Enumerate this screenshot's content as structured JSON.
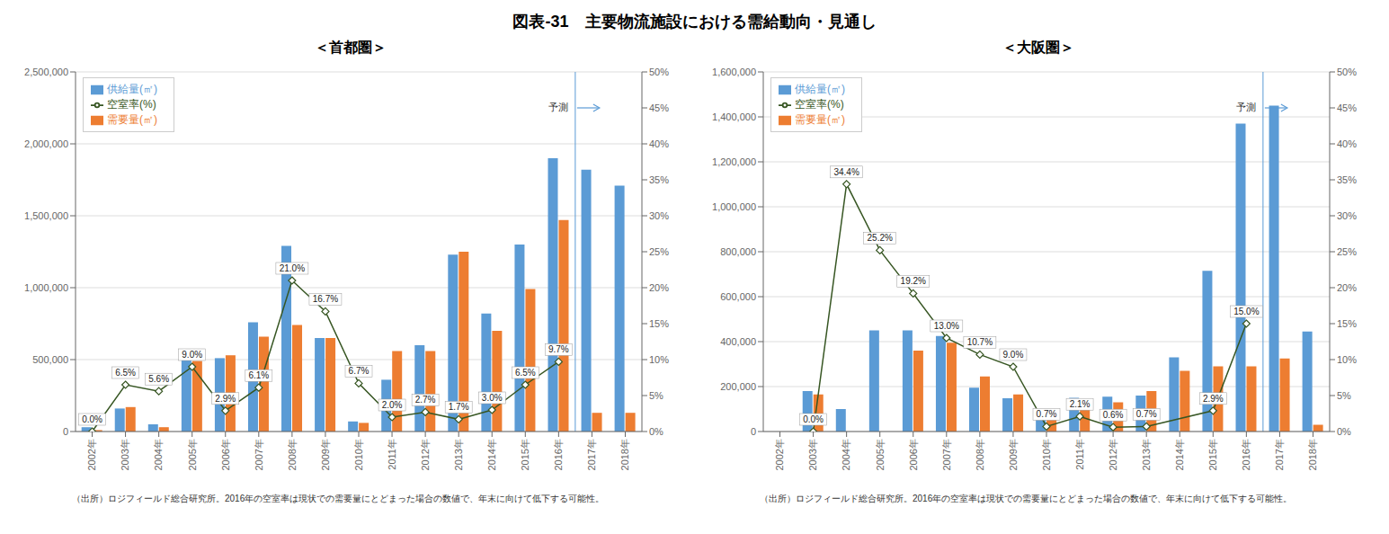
{
  "title": "図表-31　主要物流施設における需給動向・見通し",
  "chart_data": [
    {
      "type": "bar",
      "title": "＜首都圏＞",
      "categories": [
        "2002年",
        "2003年",
        "2004年",
        "2005年",
        "2006年",
        "2007年",
        "2008年",
        "2009年",
        "2010年",
        "2011年",
        "2012年",
        "2013年",
        "2014年",
        "2015年",
        "2016年",
        "2017年",
        "2018年"
      ],
      "series": [
        {
          "name": "供給量(㎡)",
          "type": "bar",
          "color": "#5B9BD5",
          "values": [
            30000,
            160000,
            50000,
            510000,
            510000,
            760000,
            1290000,
            650000,
            70000,
            360000,
            600000,
            1230000,
            820000,
            1300000,
            1900000,
            1820000,
            1710000
          ]
        },
        {
          "name": "需要量(㎡)",
          "type": "bar",
          "color": "#ED7D31",
          "values": [
            10000,
            170000,
            30000,
            490000,
            530000,
            660000,
            740000,
            650000,
            60000,
            560000,
            560000,
            1250000,
            700000,
            990000,
            1470000,
            130000,
            130000
          ]
        },
        {
          "name": "空室率(%)",
          "type": "line",
          "axis": "y2",
          "color": "#375623",
          "marker": "diamond",
          "data_labels": true,
          "values": [
            0.0,
            6.5,
            5.6,
            9.0,
            2.9,
            6.1,
            21.0,
            16.7,
            6.7,
            2.0,
            2.7,
            1.7,
            3.0,
            6.5,
            9.7,
            null,
            null
          ],
          "value_labels": [
            "0.0%",
            "6.5%",
            "5.6%",
            "9.0%",
            "2.9%",
            "6.1%",
            "21.0%",
            "16.7%",
            "6.7%",
            "2.0%",
            "2.7%",
            "1.7%",
            "3.0%",
            "6.5%",
            "9.7%",
            null,
            null
          ]
        }
      ],
      "ylim": [
        0,
        2500000
      ],
      "yticks": [
        0,
        {
          "value": 500000,
          "label": "500,000"
        },
        {
          "value": 1000000,
          "label": "1,000,000"
        },
        {
          "value": 1500000,
          "label": "1,500,000"
        },
        {
          "value": 2000000,
          "label": "2,000,000"
        },
        {
          "value": 2500000,
          "label": "2,500,000"
        }
      ],
      "y2lim": [
        0,
        50
      ],
      "y2ticks": [
        {
          "value": 0,
          "label": "0%"
        },
        {
          "value": 5,
          "label": "5%"
        },
        {
          "value": 10,
          "label": "10%"
        },
        {
          "value": 15,
          "label": "15%"
        },
        {
          "value": 20,
          "label": "20%"
        },
        {
          "value": 25,
          "label": "25%"
        },
        {
          "value": 30,
          "label": "30%"
        },
        {
          "value": 35,
          "label": "35%"
        },
        {
          "value": 40,
          "label": "40%"
        },
        {
          "value": 45,
          "label": "45%"
        },
        {
          "value": 50,
          "label": "50%"
        }
      ],
      "grid": true,
      "legend": "upper left",
      "annotations": [
        {
          "text": "予測",
          "x": "2017年",
          "color": "#5B9BD5"
        }
      ],
      "note": "（出所）ロジフィールド総合研究所。2016年の空室率は現状での需要量にとどまった場合の数値で、年末に向けて低下する可能性。"
    },
    {
      "type": "bar",
      "title": "＜大阪圏＞",
      "categories": [
        "2002年",
        "2003年",
        "2004年",
        "2005年",
        "2006年",
        "2007年",
        "2008年",
        "2009年",
        "2010年",
        "2011年",
        "2012年",
        "2013年",
        "2014年",
        "2015年",
        "2016年",
        "2017年",
        "2018年"
      ],
      "series": [
        {
          "name": "供給量(㎡)",
          "type": "bar",
          "color": "#5B9BD5",
          "values": [
            0,
            180000,
            100000,
            450000,
            450000,
            425000,
            195000,
            148000,
            65000,
            150000,
            155000,
            160000,
            330000,
            715000,
            1370000,
            1450000,
            445000
          ]
        },
        {
          "name": "需要量(㎡)",
          "type": "bar",
          "color": "#ED7D31",
          "values": [
            0,
            165000,
            0,
            0,
            360000,
            395000,
            245000,
            165000,
            80000,
            120000,
            130000,
            180000,
            270000,
            290000,
            290000,
            325000,
            30000
          ]
        },
        {
          "name": "空室率(%)",
          "type": "line",
          "axis": "y2",
          "color": "#375623",
          "marker": "diamond",
          "data_labels": true,
          "values": [
            null,
            0.0,
            34.4,
            25.2,
            19.2,
            13.0,
            10.7,
            9.0,
            0.7,
            2.1,
            0.6,
            0.7,
            null,
            2.9,
            15.0,
            null,
            null
          ],
          "value_labels": [
            null,
            "0.0%",
            "34.4%",
            "25.2%",
            "19.2%",
            "13.0%",
            "10.7%",
            "9.0%",
            "0.7%",
            "2.1%",
            "0.6%",
            "0.7%",
            null,
            "2.9%",
            "15.0%",
            null,
            null
          ]
        }
      ],
      "ylim": [
        0,
        1600000
      ],
      "yticks": [
        0,
        {
          "value": 200000,
          "label": "200,000"
        },
        {
          "value": 400000,
          "label": "400,000"
        },
        {
          "value": 600000,
          "label": "600,000"
        },
        {
          "value": 800000,
          "label": "800,000"
        },
        {
          "value": 1000000,
          "label": "1,000,000"
        },
        {
          "value": 1200000,
          "label": "1,200,000"
        },
        {
          "value": 1400000,
          "label": "1,400,000"
        },
        {
          "value": 1600000,
          "label": "1,600,000"
        }
      ],
      "y2lim": [
        0,
        50
      ],
      "y2ticks": [
        {
          "value": 0,
          "label": "0%"
        },
        {
          "value": 5,
          "label": "5%"
        },
        {
          "value": 10,
          "label": "10%"
        },
        {
          "value": 15,
          "label": "15%"
        },
        {
          "value": 20,
          "label": "20%"
        },
        {
          "value": 25,
          "label": "25%"
        },
        {
          "value": 30,
          "label": "30%"
        },
        {
          "value": 35,
          "label": "35%"
        },
        {
          "value": 40,
          "label": "40%"
        },
        {
          "value": 45,
          "label": "45%"
        },
        {
          "value": 50,
          "label": "50%"
        }
      ],
      "grid": true,
      "legend": "upper left",
      "annotations": [
        {
          "text": "予測",
          "x": "2017年",
          "color": "#5B9BD5"
        }
      ],
      "note": "（出所）ロジフィールド総合研究所。2016年の空室率は現状での需要量にとどまった場合の数値で、年末に向けて低下する可能性。"
    }
  ]
}
